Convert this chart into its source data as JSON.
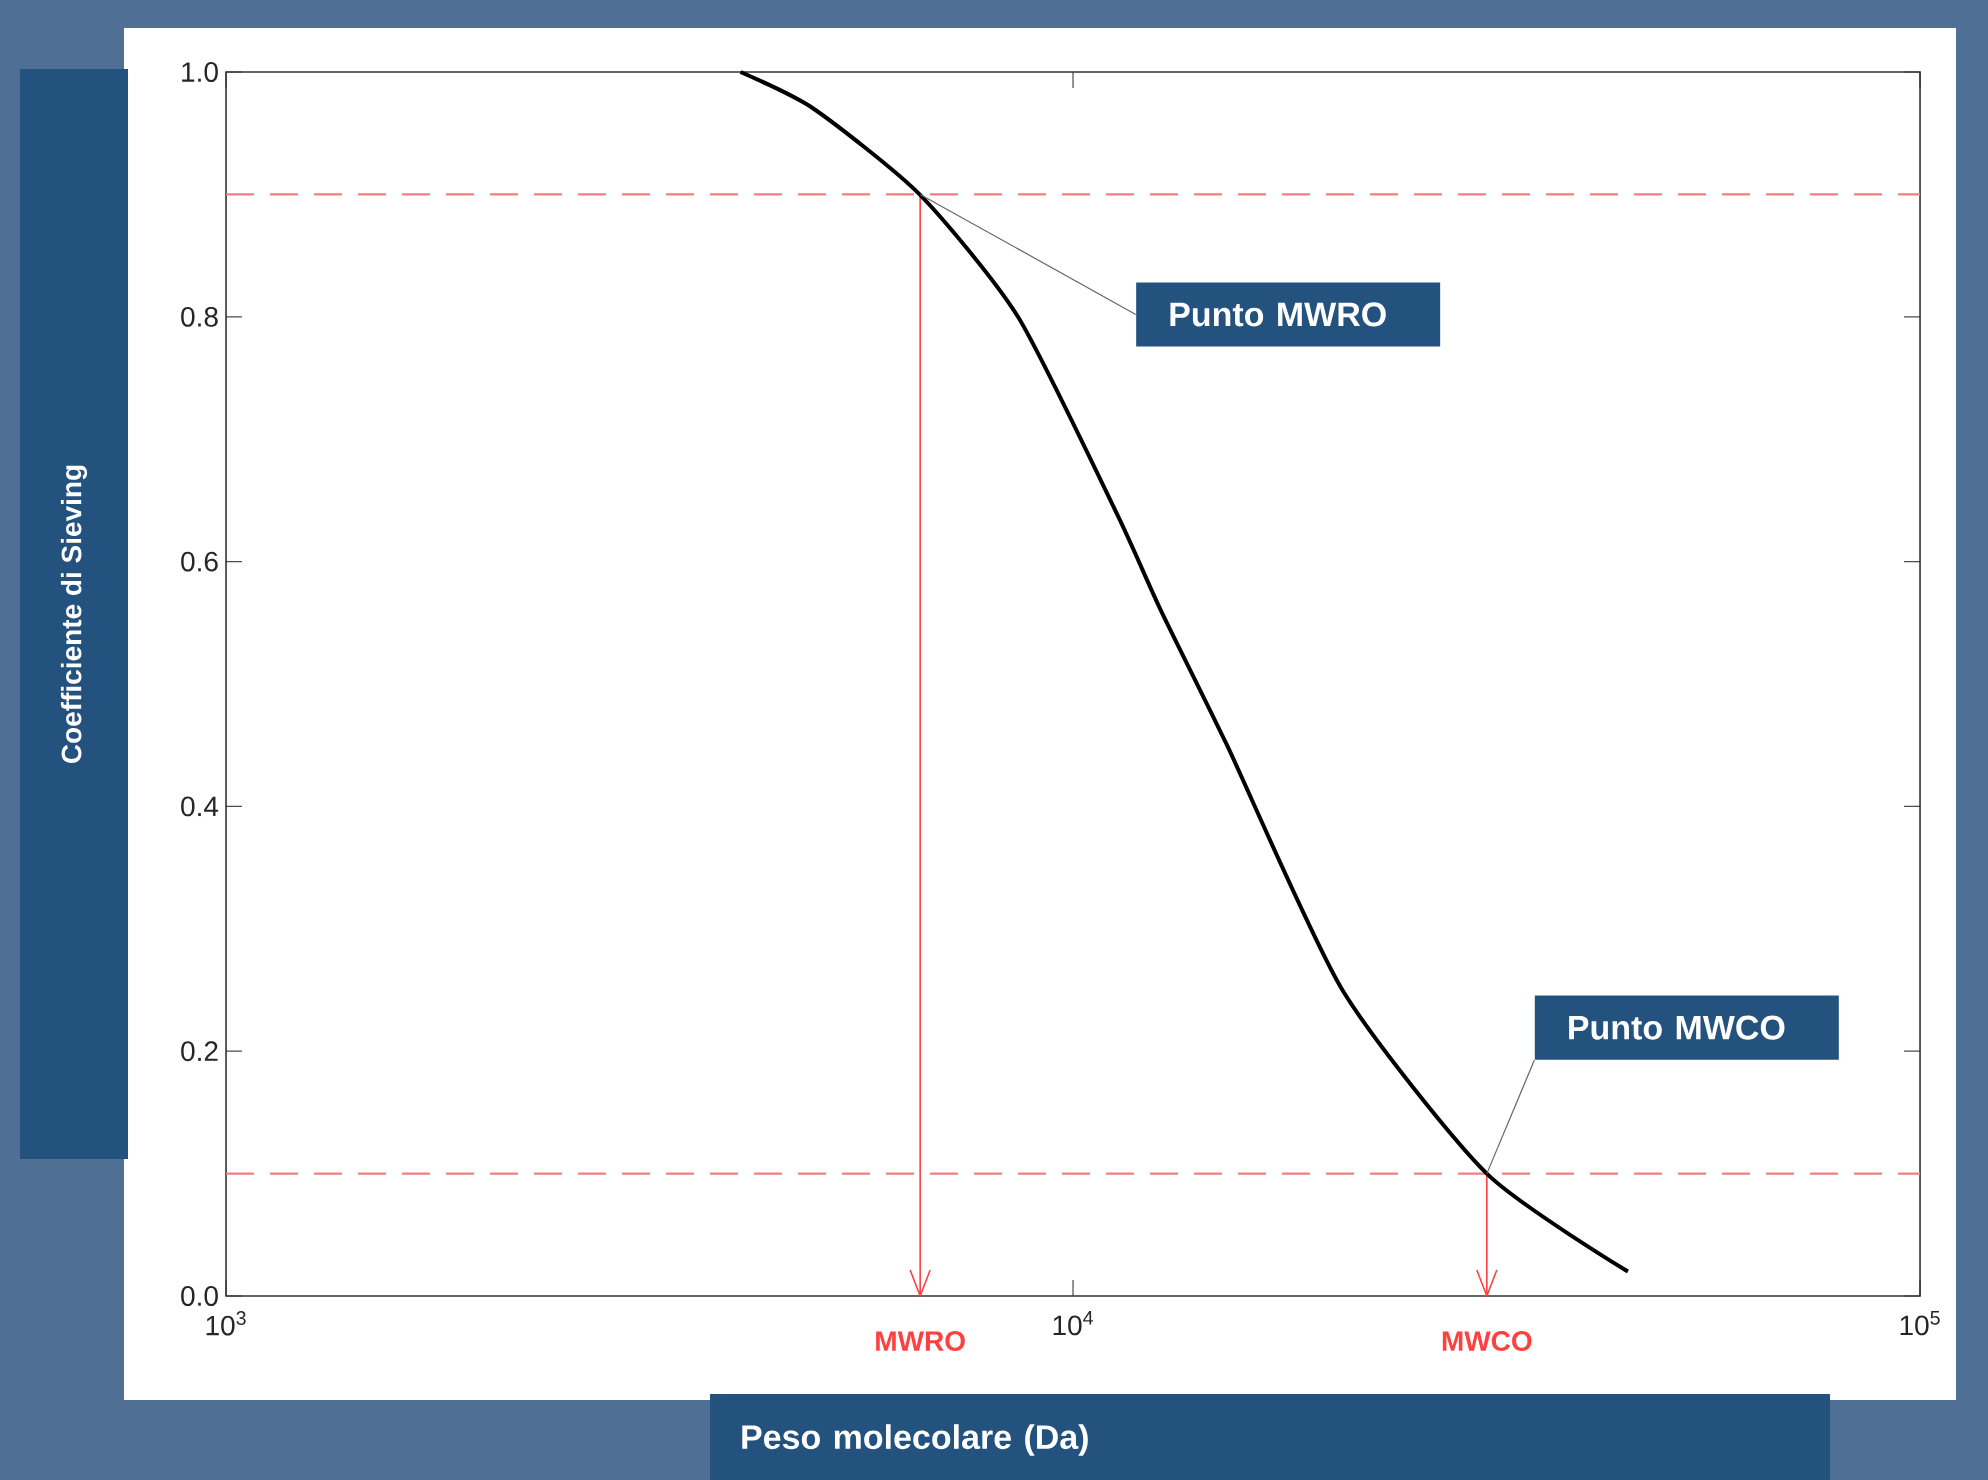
{
  "chart_data": {
    "type": "line",
    "xlabel": "Peso molecolare (Da)",
    "ylabel": "Coefficiente di Sieving",
    "log": "x",
    "xlim": [
      1000,
      100000
    ],
    "ylim": [
      0,
      1
    ],
    "xticks": [
      {
        "value": 1000,
        "label": "10$^{3}$"
      },
      {
        "value": 10000,
        "label": "10$^{4}$"
      },
      {
        "value": 100000,
        "label": "10$^{5}$"
      }
    ],
    "yticks": [
      {
        "value": 0,
        "label": "0.0"
      },
      0.2,
      0.4,
      0.6,
      0.8,
      {
        "value": 1,
        "label": "1.0"
      }
    ],
    "x": [
      4050,
      4940,
      6590,
      8610,
      11250,
      12700,
      15200,
      20800,
      30800,
      45200
    ],
    "series": [
      {
        "color": "#000000",
        "values": [
          1.0,
          0.97,
          0.9,
          0.8,
          0.64,
          0.56,
          0.45,
          0.25,
          0.1,
          0.02
        ]
      }
    ],
    "ref_lines": [
      {
        "axis": "y",
        "value": 0.9,
        "color": "#f08080",
        "line_style": "dashed"
      },
      {
        "axis": "y",
        "value": 0.1,
        "color": "#f08080",
        "line_style": "dashed"
      },
      {
        "axis": "x",
        "value": 6600,
        "label": "MWRO",
        "color": "#ff4040"
      },
      {
        "axis": "x",
        "value": 30800,
        "label": "MWCO",
        "color": "#ff4040"
      }
    ],
    "annotations": [
      {
        "text": "Punto MWRO",
        "x": 6600,
        "y": 0.9
      },
      {
        "text": "Punto MWCO",
        "x": 30800,
        "y": 0.1
      }
    ]
  }
}
